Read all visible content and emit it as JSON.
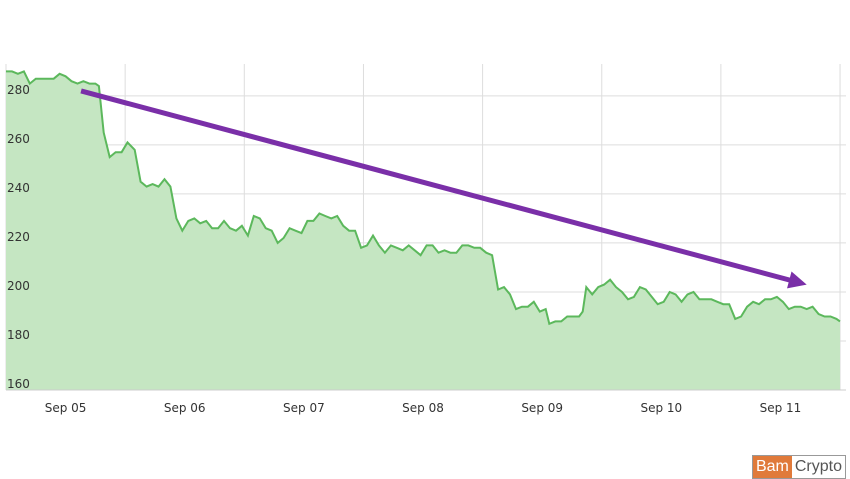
{
  "chart_data": {
    "type": "area",
    "title": "",
    "xlabel": "",
    "ylabel": "",
    "x_ticks": [
      "Sep 05",
      "Sep 06",
      "Sep 07",
      "Sep 08",
      "Sep 09",
      "Sep 10",
      "Sep 11"
    ],
    "y_ticks": [
      "280",
      "260",
      "240",
      "220",
      "200",
      "180",
      "160"
    ],
    "ylim": [
      160,
      293
    ],
    "xlim": [
      0,
      7.05
    ],
    "grid": true,
    "legend": "none",
    "colors": {
      "line": "#5cb85c",
      "fill": "#c5e6c2",
      "grid": "#dddddd",
      "annotation_arrow": "#7a2fa8"
    },
    "annotations": [
      {
        "type": "trend-arrow",
        "from": [
          0.63,
          282
        ],
        "to": [
          6.72,
          203
        ]
      }
    ],
    "series": [
      {
        "values": [
          [
            0.0,
            290
          ],
          [
            0.05,
            290
          ],
          [
            0.1,
            289
          ],
          [
            0.15,
            290
          ],
          [
            0.2,
            285
          ],
          [
            0.25,
            287
          ],
          [
            0.3,
            287
          ],
          [
            0.4,
            287
          ],
          [
            0.45,
            289
          ],
          [
            0.5,
            288
          ],
          [
            0.55,
            286
          ],
          [
            0.6,
            285
          ],
          [
            0.65,
            286
          ],
          [
            0.7,
            285
          ],
          [
            0.75,
            285
          ],
          [
            0.78,
            284
          ],
          [
            0.82,
            265
          ],
          [
            0.87,
            255
          ],
          [
            0.92,
            257
          ],
          [
            0.97,
            257
          ],
          [
            1.02,
            261
          ],
          [
            1.08,
            258
          ],
          [
            1.13,
            245
          ],
          [
            1.18,
            243
          ],
          [
            1.23,
            244
          ],
          [
            1.28,
            243
          ],
          [
            1.33,
            246
          ],
          [
            1.38,
            243
          ],
          [
            1.43,
            230
          ],
          [
            1.48,
            225
          ],
          [
            1.53,
            229
          ],
          [
            1.58,
            230
          ],
          [
            1.63,
            228
          ],
          [
            1.68,
            229
          ],
          [
            1.73,
            226
          ],
          [
            1.78,
            226
          ],
          [
            1.83,
            229
          ],
          [
            1.88,
            226
          ],
          [
            1.93,
            225
          ],
          [
            1.98,
            227
          ],
          [
            2.03,
            223
          ],
          [
            2.08,
            231
          ],
          [
            2.13,
            230
          ],
          [
            2.18,
            226
          ],
          [
            2.23,
            225
          ],
          [
            2.28,
            220
          ],
          [
            2.33,
            222
          ],
          [
            2.38,
            226
          ],
          [
            2.43,
            225
          ],
          [
            2.48,
            224
          ],
          [
            2.53,
            229
          ],
          [
            2.58,
            229
          ],
          [
            2.63,
            232
          ],
          [
            2.68,
            231
          ],
          [
            2.73,
            230
          ],
          [
            2.78,
            231
          ],
          [
            2.83,
            227
          ],
          [
            2.88,
            225
          ],
          [
            2.93,
            225
          ],
          [
            2.98,
            218
          ],
          [
            3.03,
            219
          ],
          [
            3.08,
            223
          ],
          [
            3.13,
            219
          ],
          [
            3.18,
            216
          ],
          [
            3.23,
            219
          ],
          [
            3.28,
            218
          ],
          [
            3.33,
            217
          ],
          [
            3.38,
            219
          ],
          [
            3.43,
            217
          ],
          [
            3.48,
            215
          ],
          [
            3.53,
            219
          ],
          [
            3.58,
            219
          ],
          [
            3.63,
            216
          ],
          [
            3.68,
            217
          ],
          [
            3.73,
            216
          ],
          [
            3.78,
            216
          ],
          [
            3.83,
            219
          ],
          [
            3.88,
            219
          ],
          [
            3.93,
            218
          ],
          [
            3.98,
            218
          ],
          [
            4.03,
            216
          ],
          [
            4.08,
            215
          ],
          [
            4.13,
            201
          ],
          [
            4.18,
            202
          ],
          [
            4.23,
            199
          ],
          [
            4.28,
            193
          ],
          [
            4.33,
            194
          ],
          [
            4.38,
            194
          ],
          [
            4.43,
            196
          ],
          [
            4.48,
            192
          ],
          [
            4.53,
            193
          ],
          [
            4.56,
            187
          ],
          [
            4.61,
            188
          ],
          [
            4.66,
            188
          ],
          [
            4.71,
            190
          ],
          [
            4.76,
            190
          ],
          [
            4.81,
            190
          ],
          [
            4.84,
            192
          ],
          [
            4.87,
            202
          ],
          [
            4.92,
            199
          ],
          [
            4.97,
            202
          ],
          [
            5.02,
            203
          ],
          [
            5.07,
            205
          ],
          [
            5.12,
            202
          ],
          [
            5.17,
            200
          ],
          [
            5.22,
            197
          ],
          [
            5.27,
            198
          ],
          [
            5.32,
            202
          ],
          [
            5.37,
            201
          ],
          [
            5.42,
            198
          ],
          [
            5.47,
            195
          ],
          [
            5.52,
            196
          ],
          [
            5.57,
            200
          ],
          [
            5.62,
            199
          ],
          [
            5.67,
            196
          ],
          [
            5.72,
            199
          ],
          [
            5.77,
            200
          ],
          [
            5.82,
            197
          ],
          [
            5.87,
            197
          ],
          [
            5.92,
            197
          ],
          [
            5.97,
            196
          ],
          [
            6.02,
            195
          ],
          [
            6.07,
            195
          ],
          [
            6.12,
            189
          ],
          [
            6.17,
            190
          ],
          [
            6.22,
            194
          ],
          [
            6.27,
            196
          ],
          [
            6.32,
            195
          ],
          [
            6.37,
            197
          ],
          [
            6.42,
            197
          ],
          [
            6.47,
            198
          ],
          [
            6.52,
            196
          ],
          [
            6.57,
            193
          ],
          [
            6.62,
            194
          ],
          [
            6.67,
            194
          ],
          [
            6.72,
            193
          ],
          [
            6.77,
            194
          ],
          [
            6.82,
            191
          ],
          [
            6.87,
            190
          ],
          [
            6.92,
            190
          ],
          [
            6.97,
            189
          ],
          [
            7.0,
            188
          ]
        ]
      }
    ]
  },
  "watermark": {
    "part1": "Bam",
    "part2": "Crypto"
  }
}
